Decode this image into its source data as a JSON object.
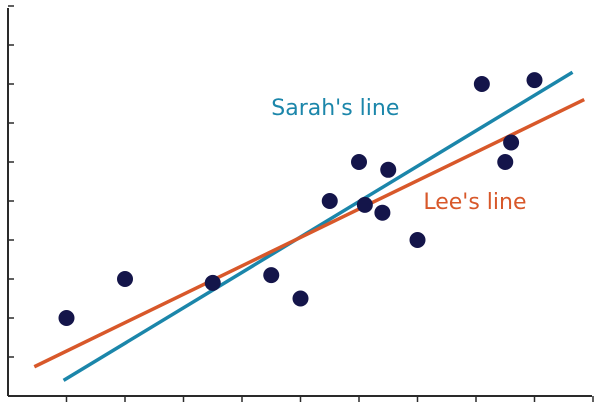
{
  "chart_data": {
    "type": "scatter",
    "title": "",
    "xlabel": "",
    "ylabel": "",
    "xlim": [
      0,
      10
    ],
    "ylim": [
      0,
      10
    ],
    "x_ticks": [
      1,
      2,
      3,
      4,
      5,
      6,
      7,
      8,
      9,
      10
    ],
    "y_ticks": [
      1,
      2,
      3,
      4,
      5,
      6,
      7,
      8,
      9,
      10
    ],
    "show_tick_labels": false,
    "grid": false,
    "point_color": "#14154a",
    "points": [
      {
        "x": 1.0,
        "y": 2.0
      },
      {
        "x": 2.0,
        "y": 3.0
      },
      {
        "x": 3.5,
        "y": 2.9
      },
      {
        "x": 4.5,
        "y": 3.1
      },
      {
        "x": 5.0,
        "y": 2.5
      },
      {
        "x": 5.5,
        "y": 5.0
      },
      {
        "x": 6.0,
        "y": 6.0
      },
      {
        "x": 6.1,
        "y": 4.9
      },
      {
        "x": 6.4,
        "y": 4.7
      },
      {
        "x": 6.5,
        "y": 5.8
      },
      {
        "x": 7.0,
        "y": 4.0
      },
      {
        "x": 8.1,
        "y": 8.0
      },
      {
        "x": 8.5,
        "y": 6.0
      },
      {
        "x": 8.6,
        "y": 6.5
      },
      {
        "x": 9.0,
        "y": 8.1
      }
    ],
    "lines": [
      {
        "name": "Sarah's line",
        "color": "#1b86aa",
        "x": [
          0.95,
          9.65
        ],
        "y": [
          0.4,
          8.3
        ]
      },
      {
        "name": "Lee's line",
        "color": "#d8582a",
        "x": [
          0.45,
          9.85
        ],
        "y": [
          0.75,
          7.6
        ]
      }
    ],
    "annotations": [
      {
        "text": "Sarah's line",
        "color": "#1b86aa",
        "x": 4.5,
        "y": 7.2
      },
      {
        "text": "Lee's line",
        "color": "#d8582a",
        "x": 7.1,
        "y": 4.8
      }
    ]
  }
}
